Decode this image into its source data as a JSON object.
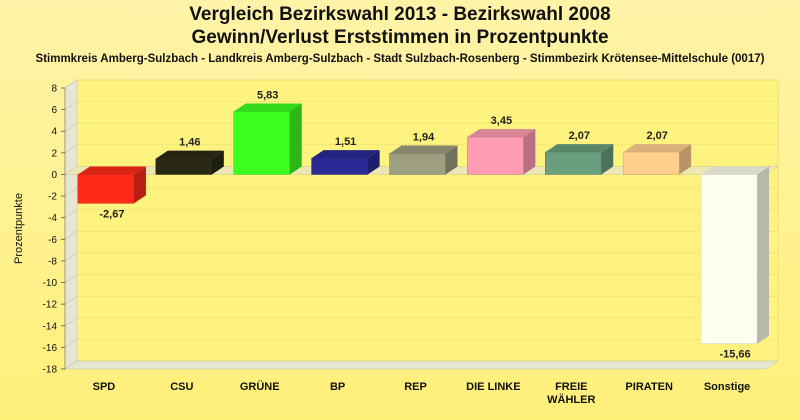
{
  "chart": {
    "title_line1": "Vergleich Bezirkswahl 2013 - Bezirkswahl 2008",
    "title_line2": "Gewinn/Verlust Erststimmen in Prozentpunkte",
    "subtitle": "Stimmkreis Amberg-Sulzbach - Landkreis Amberg-Sulzbach - Stadt Sulzbach-Rosenberg - Stimmbezirk Krötensee-Mittelschule (0017)"
  },
  "chart_data": {
    "type": "bar",
    "title": "Vergleich Bezirkswahl 2013 - Bezirkswahl 2008",
    "subtitle": "Gewinn/Verlust Erststimmen in Prozentpunkte",
    "ylabel": "Prozentpunkte",
    "xlabel": "",
    "ylim": [
      -18,
      8
    ],
    "yticks": [
      8,
      6,
      4,
      2,
      0,
      -2,
      -4,
      -6,
      -8,
      -10,
      -12,
      -14,
      -16,
      -18
    ],
    "grid": true,
    "categories": [
      "SPD",
      "CSU",
      "GRÜNE",
      "BP",
      "REP",
      "DIE LINKE",
      "FREIE WÄHLER",
      "PIRATEN",
      "Sonstige"
    ],
    "category_lines": [
      [
        "SPD"
      ],
      [
        "CSU"
      ],
      [
        "GRÜNE"
      ],
      [
        "BP"
      ],
      [
        "REP"
      ],
      [
        "DIE LINKE"
      ],
      [
        "FREIE",
        "WÄHLER"
      ],
      [
        "PIRATEN"
      ],
      [
        "Sonstige"
      ]
    ],
    "values": [
      -2.67,
      1.46,
      5.83,
      1.51,
      1.94,
      3.45,
      2.07,
      2.07,
      -15.66
    ],
    "value_labels": [
      "-2,67",
      "1,46",
      "5,83",
      "1,51",
      "1,94",
      "3,45",
      "2,07",
      "2,07",
      "-15,66"
    ],
    "colors": [
      "#ff2a1a",
      "#2a2a14",
      "#3cff20",
      "#2a2a96",
      "#9e9e80",
      "#ff9cb4",
      "#6a9e7e",
      "#ffcf8e",
      "#fffff0"
    ]
  }
}
